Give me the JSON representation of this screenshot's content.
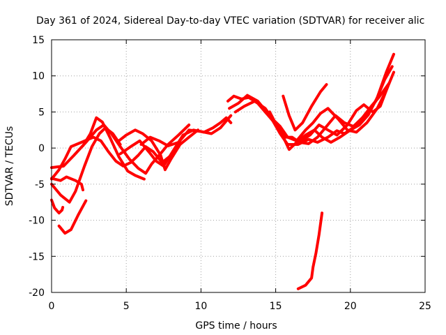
{
  "chart_data": {
    "type": "line",
    "title": "Day 361 of 2024, Sidereal Day-to-day VTEC variation (SDTVAR) for receiver alic",
    "xlabel": "GPS time / hours",
    "ylabel": "SDTVAR / TECUs",
    "xlim": [
      0,
      25
    ],
    "ylim": [
      -20,
      15
    ],
    "xticks": [
      0,
      5,
      10,
      15,
      20,
      25
    ],
    "yticks": [
      -20,
      -15,
      -10,
      -5,
      0,
      5,
      10,
      15
    ],
    "grid": true,
    "color": "#ff0000",
    "series": [
      {
        "name": "s1",
        "points": [
          [
            0,
            -2.7
          ],
          [
            0.8,
            -2.5
          ],
          [
            1.5,
            -1
          ],
          [
            2.3,
            0.8
          ],
          [
            3.0,
            2.5
          ],
          [
            3.5,
            3.2
          ],
          [
            4.0,
            2.0
          ],
          [
            4.6,
            0.2
          ],
          [
            5.2,
            -1.5
          ],
          [
            5.8,
            -2.8
          ],
          [
            6.3,
            -3.5
          ],
          [
            6.7,
            -2.2
          ],
          [
            7.2,
            -1.0
          ],
          [
            7.8,
            0.5
          ],
          [
            8.5,
            1.8
          ],
          [
            9.2,
            3.2
          ]
        ]
      },
      {
        "name": "s2",
        "points": [
          [
            0,
            -4.3
          ],
          [
            0.5,
            -3.0
          ],
          [
            0.9,
            -1.5
          ],
          [
            1.3,
            0.2
          ],
          [
            2.0,
            0.8
          ],
          [
            2.8,
            1.5
          ],
          [
            3.3,
            1.0
          ],
          [
            3.8,
            -0.5
          ],
          [
            4.3,
            -1.8
          ],
          [
            4.8,
            -2.5
          ],
          [
            5.3,
            -2.0
          ],
          [
            5.8,
            -1.0
          ],
          [
            6.3,
            0.2
          ],
          [
            6.8,
            -0.5
          ],
          [
            7.4,
            -2.0
          ],
          [
            8.0,
            -1.0
          ],
          [
            8.6,
            1.0
          ]
        ]
      },
      {
        "name": "s3",
        "points": [
          [
            0,
            -4.2
          ],
          [
            0.6,
            -4.5
          ],
          [
            1.0,
            -4.0
          ],
          [
            1.6,
            -4.5
          ],
          [
            2.0,
            -5.0
          ],
          [
            2.1,
            -5.8
          ]
        ]
      },
      {
        "name": "s4",
        "points": [
          [
            0,
            -5.0
          ],
          [
            0.6,
            -6.5
          ],
          [
            1.2,
            -7.5
          ],
          [
            1.6,
            -6.0
          ],
          [
            2.2,
            -2.5
          ],
          [
            2.7,
            0.2
          ],
          [
            3.2,
            2.0
          ],
          [
            3.6,
            2.8
          ],
          [
            4.1,
            2.0
          ],
          [
            4.6,
            0.5
          ]
        ]
      },
      {
        "name": "s5",
        "points": [
          [
            2.1,
            0.3
          ],
          [
            2.6,
            2.0
          ],
          [
            3.0,
            4.2
          ],
          [
            3.4,
            3.6
          ],
          [
            3.9,
            1.5
          ],
          [
            4.5,
            -1.2
          ],
          [
            5.1,
            -3.2
          ],
          [
            5.6,
            -3.8
          ],
          [
            6.2,
            -4.3
          ]
        ]
      },
      {
        "name": "s6",
        "points": [
          [
            4.5,
            1.0
          ],
          [
            5.0,
            1.8
          ],
          [
            5.6,
            2.5
          ],
          [
            6.1,
            2.0
          ],
          [
            6.7,
            1.0
          ],
          [
            7.3,
            -1.0
          ],
          [
            7.6,
            -3.0
          ],
          [
            8.0,
            -1.5
          ],
          [
            8.6,
            0.5
          ],
          [
            9.2,
            1.5
          ],
          [
            9.8,
            2.5
          ]
        ]
      },
      {
        "name": "s7",
        "points": [
          [
            4.6,
            -0.8
          ],
          [
            5.3,
            0.2
          ],
          [
            5.9,
            1.0
          ],
          [
            6.5,
            -0.5
          ],
          [
            7.0,
            -1.8
          ],
          [
            7.5,
            -2.5
          ],
          [
            8.1,
            -0.5
          ],
          [
            8.8,
            1.8
          ],
          [
            9.5,
            2.5
          ],
          [
            10.2,
            2.2
          ],
          [
            10.8,
            2.8
          ],
          [
            11.3,
            3.5
          ],
          [
            11.7,
            4.2
          ],
          [
            12.0,
            3.5
          ]
        ]
      },
      {
        "name": "s8",
        "points": [
          [
            6.0,
            0.5
          ],
          [
            6.6,
            1.5
          ],
          [
            7.2,
            1.0
          ],
          [
            7.8,
            0.3
          ],
          [
            8.5,
            0.8
          ],
          [
            9.2,
            2.5
          ],
          [
            10.0,
            2.3
          ],
          [
            10.7,
            2.0
          ],
          [
            11.3,
            2.8
          ],
          [
            12.0,
            4.5
          ]
        ]
      },
      {
        "name": "s9",
        "points": [
          [
            0,
            -7.2
          ],
          [
            0.2,
            -8.3
          ],
          [
            0.5,
            -9.0
          ],
          [
            0.7,
            -8.6
          ],
          [
            0.75,
            -8.2
          ]
        ]
      },
      {
        "name": "s10",
        "points": [
          [
            0.5,
            -10.8
          ],
          [
            0.9,
            -11.8
          ],
          [
            1.3,
            -11.3
          ],
          [
            1.8,
            -9.2
          ],
          [
            2.3,
            -7.3
          ]
        ]
      },
      {
        "name": "s11",
        "points": [
          [
            11.8,
            6.5
          ],
          [
            12.2,
            7.2
          ],
          [
            12.7,
            6.8
          ],
          [
            13.2,
            7.0
          ],
          [
            13.8,
            6.2
          ],
          [
            14.3,
            5.0
          ],
          [
            14.8,
            3.8
          ],
          [
            15.3,
            2.0
          ],
          [
            15.8,
            0.5
          ],
          [
            16.5,
            0.5
          ],
          [
            17.2,
            1.2
          ],
          [
            17.8,
            0.8
          ],
          [
            18.5,
            1.5
          ],
          [
            19.1,
            2.4
          ],
          [
            19.6,
            2.0
          ],
          [
            20.3,
            3.0
          ],
          [
            21.0,
            4.5
          ],
          [
            21.7,
            6.5
          ],
          [
            22.3,
            9.5
          ],
          [
            22.8,
            11.3
          ]
        ]
      },
      {
        "name": "s12",
        "points": [
          [
            11.9,
            5.5
          ],
          [
            12.5,
            6.2
          ],
          [
            13.1,
            7.3
          ],
          [
            13.8,
            6.5
          ],
          [
            14.4,
            5.0
          ],
          [
            14.9,
            3.5
          ],
          [
            15.4,
            2.0
          ],
          [
            15.9,
            -0.2
          ],
          [
            16.4,
            0.8
          ],
          [
            17.0,
            1.8
          ],
          [
            17.6,
            2.5
          ],
          [
            18.1,
            1.5
          ],
          [
            18.7,
            0.8
          ],
          [
            19.3,
            1.5
          ],
          [
            20.0,
            2.5
          ],
          [
            20.6,
            3.2
          ],
          [
            21.2,
            4.6
          ],
          [
            21.8,
            7.0
          ],
          [
            22.4,
            10.5
          ],
          [
            22.9,
            13.0
          ]
        ]
      },
      {
        "name": "s13",
        "points": [
          [
            12.3,
            5.0
          ],
          [
            12.9,
            5.8
          ],
          [
            13.6,
            6.5
          ],
          [
            14.3,
            5.5
          ],
          [
            14.8,
            4.0
          ],
          [
            15.3,
            3.0
          ],
          [
            15.8,
            1.5
          ],
          [
            16.4,
            1.0
          ],
          [
            17.0,
            2.5
          ],
          [
            17.5,
            3.5
          ],
          [
            18.0,
            4.8
          ],
          [
            18.5,
            5.5
          ],
          [
            19.2,
            4.0
          ],
          [
            19.8,
            2.5
          ],
          [
            20.4,
            2.2
          ],
          [
            21.1,
            3.5
          ],
          [
            21.8,
            5.5
          ],
          [
            22.4,
            8.0
          ],
          [
            22.9,
            10.5
          ]
        ]
      },
      {
        "name": "s14",
        "points": [
          [
            15.5,
            7.2
          ],
          [
            15.9,
            4.5
          ],
          [
            16.3,
            2.5
          ],
          [
            16.8,
            3.5
          ],
          [
            17.4,
            5.8
          ],
          [
            18.0,
            7.8
          ],
          [
            18.4,
            8.8
          ]
        ]
      },
      {
        "name": "s15",
        "points": [
          [
            16.7,
            1.0
          ],
          [
            17.3,
            1.8
          ],
          [
            17.9,
            3.2
          ],
          [
            18.5,
            2.5
          ],
          [
            19.1,
            1.8
          ],
          [
            19.8,
            3.2
          ],
          [
            20.4,
            5.2
          ],
          [
            20.9,
            6.0
          ],
          [
            21.5,
            5.0
          ],
          [
            22.0,
            5.8
          ],
          [
            22.5,
            8.5
          ]
        ]
      },
      {
        "name": "s16",
        "points": [
          [
            14.6,
            5.0
          ],
          [
            15.1,
            3.0
          ],
          [
            15.6,
            1.5
          ],
          [
            16.1,
            1.5
          ],
          [
            16.6,
            0.8
          ],
          [
            17.2,
            0.6
          ],
          [
            17.8,
            1.5
          ],
          [
            18.4,
            3.0
          ],
          [
            19.0,
            4.5
          ],
          [
            19.6,
            3.5
          ],
          [
            20.2,
            3.0
          ],
          [
            20.8,
            4.2
          ],
          [
            21.4,
            5.8
          ],
          [
            21.9,
            7.0
          ],
          [
            22.6,
            9.0
          ]
        ]
      },
      {
        "name": "s17",
        "points": [
          [
            16.5,
            -19.5
          ],
          [
            17.0,
            -19.0
          ],
          [
            17.4,
            -18.0
          ],
          [
            17.5,
            -16.5
          ],
          [
            17.7,
            -14.5
          ],
          [
            17.9,
            -12.0
          ],
          [
            18.1,
            -9.0
          ]
        ]
      }
    ]
  }
}
